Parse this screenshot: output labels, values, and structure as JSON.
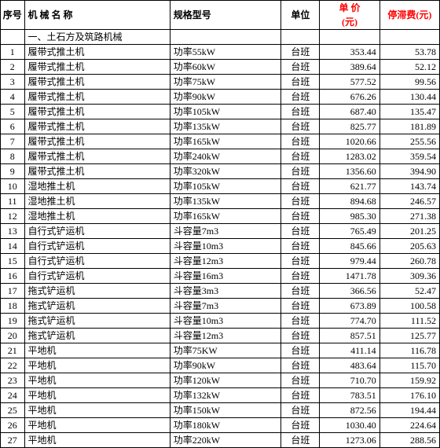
{
  "headers": {
    "seq": "序号",
    "name": "机 械 名 称",
    "spec": "规格型号",
    "unit": "单位",
    "price": "单 价\n(元)",
    "fee": "停滞费(元)"
  },
  "section": "一、土石方及筑路机械",
  "rows": [
    {
      "seq": "1",
      "name": "履带式推土机",
      "spec": "功率55kW",
      "unit": "台班",
      "price": "353.44",
      "fee": "53.78"
    },
    {
      "seq": "2",
      "name": "履带式推土机",
      "spec": "功率60kW",
      "unit": "台班",
      "price": "389.64",
      "fee": "52.12"
    },
    {
      "seq": "3",
      "name": "履带式推土机",
      "spec": "功率75kW",
      "unit": "台班",
      "price": "577.52",
      "fee": "99.56"
    },
    {
      "seq": "4",
      "name": "履带式推土机",
      "spec": "功率90kW",
      "unit": "台班",
      "price": "676.26",
      "fee": "130.44"
    },
    {
      "seq": "5",
      "name": "履带式推土机",
      "spec": "功率105kW",
      "unit": "台班",
      "price": "687.40",
      "fee": "135.47"
    },
    {
      "seq": "6",
      "name": "履带式推土机",
      "spec": "功率135kW",
      "unit": "台班",
      "price": "825.77",
      "fee": "181.89"
    },
    {
      "seq": "7",
      "name": "履带式推土机",
      "spec": "功率165kW",
      "unit": "台班",
      "price": "1020.66",
      "fee": "255.56"
    },
    {
      "seq": "8",
      "name": "履带式推土机",
      "spec": "功率240kW",
      "unit": "台班",
      "price": "1283.02",
      "fee": "359.54"
    },
    {
      "seq": "9",
      "name": "履带式推土机",
      "spec": "功率320kW",
      "unit": "台班",
      "price": "1356.60",
      "fee": "394.90"
    },
    {
      "seq": "10",
      "name": "湿地推土机",
      "spec": "功率105kW",
      "unit": "台班",
      "price": "621.77",
      "fee": "143.74"
    },
    {
      "seq": "11",
      "name": "湿地推土机",
      "spec": "功率135kW",
      "unit": "台班",
      "price": "894.68",
      "fee": "246.57"
    },
    {
      "seq": "12",
      "name": "湿地推土机",
      "spec": "功率165kW",
      "unit": "台班",
      "price": "985.30",
      "fee": "271.38"
    },
    {
      "seq": "13",
      "name": "自行式铲运机",
      "spec": "斗容量7m3",
      "unit": "台班",
      "price": "765.49",
      "fee": "201.25"
    },
    {
      "seq": "14",
      "name": "自行式铲运机",
      "spec": "斗容量10m3",
      "unit": "台班",
      "price": "845.66",
      "fee": "205.63"
    },
    {
      "seq": "15",
      "name": "自行式铲运机",
      "spec": "斗容量12m3",
      "unit": "台班",
      "price": "979.44",
      "fee": "260.78"
    },
    {
      "seq": "16",
      "name": "自行式铲运机",
      "spec": "斗容量16m3",
      "unit": "台班",
      "price": "1471.78",
      "fee": "309.36"
    },
    {
      "seq": "17",
      "name": "拖式铲运机",
      "spec": "斗容量3m3",
      "unit": "台班",
      "price": "366.56",
      "fee": "52.47"
    },
    {
      "seq": "18",
      "name": "拖式铲运机",
      "spec": "斗容量7m3",
      "unit": "台班",
      "price": "673.89",
      "fee": "100.58"
    },
    {
      "seq": "19",
      "name": "拖式铲运机",
      "spec": "斗容量10m3",
      "unit": "台班",
      "price": "774.70",
      "fee": "111.52"
    },
    {
      "seq": "20",
      "name": "拖式铲运机",
      "spec": "斗容量12m3",
      "unit": "台班",
      "price": "857.51",
      "fee": "125.77"
    },
    {
      "seq": "21",
      "name": "平地机",
      "spec": "功率75KW",
      "unit": "台班",
      "price": "411.14",
      "fee": "116.78"
    },
    {
      "seq": "22",
      "name": "平地机",
      "spec": "功率90kW",
      "unit": "台班",
      "price": "483.64",
      "fee": "115.70"
    },
    {
      "seq": "23",
      "name": "平地机",
      "spec": "功率120kW",
      "unit": "台班",
      "price": "710.70",
      "fee": "159.92"
    },
    {
      "seq": "24",
      "name": "平地机",
      "spec": "功率132kW",
      "unit": "台班",
      "price": "783.51",
      "fee": "176.10"
    },
    {
      "seq": "25",
      "name": "平地机",
      "spec": "功率150kW",
      "unit": "台班",
      "price": "872.56",
      "fee": "194.44"
    },
    {
      "seq": "26",
      "name": "平地机",
      "spec": "功率180kW",
      "unit": "台班",
      "price": "1030.40",
      "fee": "224.64"
    },
    {
      "seq": "27",
      "name": "平地机",
      "spec": "功率220kW",
      "unit": "台班",
      "price": "1273.06",
      "fee": "288.56"
    }
  ],
  "colors": {
    "header_price": "#ff0000",
    "border": "#000000",
    "background": "#ffffff"
  }
}
